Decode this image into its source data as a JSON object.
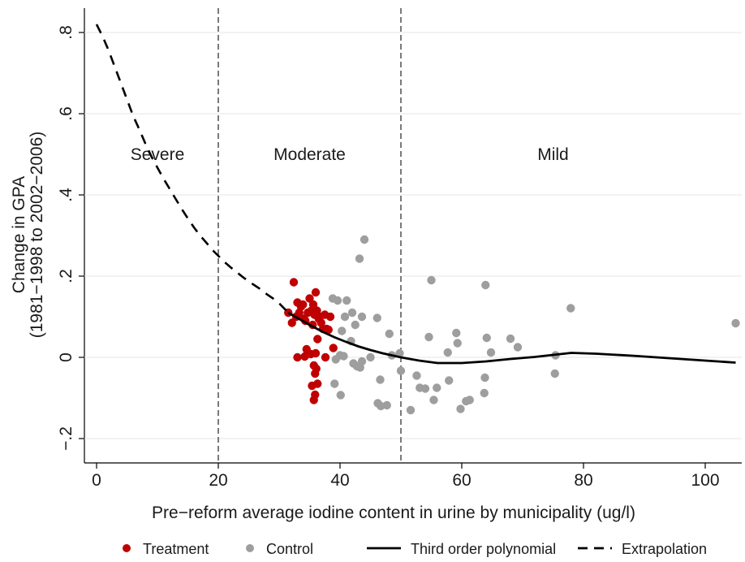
{
  "chart_data": {
    "type": "scatter",
    "xlabel": "Pre−reform average iodine content in urine by municipality (ug/l)",
    "ylabel_lines": [
      "Change in GPA",
      "(1981−1998 to 2002−2006)"
    ],
    "xlim": [
      -2,
      106
    ],
    "ylim": [
      -0.26,
      0.86
    ],
    "x_ticks": [
      0,
      20,
      40,
      60,
      80,
      100
    ],
    "x_tick_labels": [
      "0",
      "20",
      "40",
      "60",
      "80",
      "100"
    ],
    "y_ticks": [
      -0.2,
      0,
      0.2,
      0.4,
      0.6,
      0.8
    ],
    "y_tick_labels": [
      "−.2",
      "0",
      ".2",
      ".4",
      ".6",
      ".8"
    ],
    "grid": true,
    "vlines": [
      20,
      50
    ],
    "regions": [
      {
        "label": "Severe",
        "x": 10,
        "y": 0.5
      },
      {
        "label": "Moderate",
        "x": 35,
        "y": 0.5
      },
      {
        "label": "Mild",
        "x": 75,
        "y": 0.5
      }
    ],
    "legend": {
      "position": "bottom",
      "items": [
        {
          "label": "Treatment",
          "kind": "dot",
          "color": "#c00000"
        },
        {
          "label": "Control",
          "kind": "dot",
          "color": "#9e9e9e"
        },
        {
          "label": "Third order polynomial",
          "kind": "solid",
          "color": "#000000"
        },
        {
          "label": "Extrapolation",
          "kind": "dashed",
          "color": "#000000"
        }
      ]
    },
    "series": [
      {
        "name": "Treatment",
        "color": "#c00000",
        "points": [
          [
            31.5,
            0.11
          ],
          [
            32.4,
            0.185
          ],
          [
            32.1,
            0.085
          ],
          [
            32.8,
            0.1
          ],
          [
            33.0,
            0.135
          ],
          [
            33.3,
            0.11
          ],
          [
            33.6,
            0.125
          ],
          [
            33.9,
            0.13
          ],
          [
            34.1,
            0.095
          ],
          [
            34.3,
            0.09
          ],
          [
            34.7,
            0.11
          ],
          [
            35.0,
            0.145
          ],
          [
            35.3,
            0.115
          ],
          [
            35.6,
            0.13
          ],
          [
            35.8,
            0.105
          ],
          [
            36.0,
            0.16
          ],
          [
            36.2,
            0.115
          ],
          [
            36.5,
            0.095
          ],
          [
            36.7,
            0.1
          ],
          [
            36.9,
            0.085
          ],
          [
            37.2,
            0.07
          ],
          [
            37.5,
            0.105
          ],
          [
            37.8,
            0.07
          ],
          [
            38.1,
            0.068
          ],
          [
            38.4,
            0.1
          ],
          [
            35.5,
            0.08
          ],
          [
            36.3,
            0.045
          ],
          [
            38.9,
            0.023
          ],
          [
            37.6,
            0.0
          ],
          [
            36.0,
            0.01
          ],
          [
            34.5,
            0.02
          ],
          [
            34.2,
            0.002
          ],
          [
            33.0,
            0.0
          ],
          [
            35.2,
            0.008
          ],
          [
            35.7,
            -0.02
          ],
          [
            36.1,
            -0.028
          ],
          [
            35.9,
            -0.04
          ],
          [
            35.4,
            -0.07
          ],
          [
            35.9,
            -0.092
          ],
          [
            35.7,
            -0.105
          ],
          [
            36.3,
            -0.065
          ]
        ]
      },
      {
        "name": "Control",
        "color": "#9e9e9e",
        "points": [
          [
            38.8,
            0.145
          ],
          [
            39.6,
            0.14
          ],
          [
            41.1,
            0.14
          ],
          [
            40.8,
            0.1
          ],
          [
            42.0,
            0.11
          ],
          [
            40.3,
            0.065
          ],
          [
            42.5,
            0.08
          ],
          [
            43.6,
            0.1
          ],
          [
            43.2,
            0.243
          ],
          [
            44.0,
            0.29
          ],
          [
            41.8,
            0.04
          ],
          [
            40.0,
            0.005
          ],
          [
            40.6,
            0.003
          ],
          [
            39.3,
            -0.005
          ],
          [
            42.2,
            -0.015
          ],
          [
            42.8,
            -0.022
          ],
          [
            43.3,
            -0.025
          ],
          [
            43.6,
            -0.01
          ],
          [
            39.1,
            -0.065
          ],
          [
            40.1,
            -0.093
          ],
          [
            45.0,
            0.0
          ],
          [
            46.1,
            0.097
          ],
          [
            46.6,
            -0.055
          ],
          [
            46.2,
            -0.113
          ],
          [
            46.7,
            -0.12
          ],
          [
            47.7,
            -0.118
          ],
          [
            48.1,
            0.058
          ],
          [
            48.5,
            0.005
          ],
          [
            49.8,
            0.01
          ],
          [
            50.0,
            -0.033
          ],
          [
            51.6,
            -0.13
          ],
          [
            52.6,
            -0.045
          ],
          [
            53.1,
            -0.075
          ],
          [
            54.0,
            -0.077
          ],
          [
            54.6,
            0.05
          ],
          [
            55.0,
            0.19
          ],
          [
            55.4,
            -0.105
          ],
          [
            55.9,
            -0.075
          ],
          [
            57.7,
            0.012
          ],
          [
            57.9,
            -0.057
          ],
          [
            59.1,
            0.06
          ],
          [
            59.3,
            0.035
          ],
          [
            59.8,
            -0.127
          ],
          [
            60.7,
            -0.108
          ],
          [
            61.3,
            -0.105
          ],
          [
            63.9,
            0.178
          ],
          [
            64.1,
            0.048
          ],
          [
            63.8,
            -0.05
          ],
          [
            63.7,
            -0.088
          ],
          [
            64.8,
            0.012
          ],
          [
            68.0,
            0.046
          ],
          [
            69.2,
            0.025
          ],
          [
            75.4,
            0.005
          ],
          [
            75.3,
            -0.04
          ],
          [
            77.9,
            0.121
          ],
          [
            105.0,
            0.084
          ]
        ]
      },
      {
        "name": "Third order polynomial",
        "style": "solid",
        "color": "#000000",
        "points": [
          [
            31.5,
            0.11
          ],
          [
            33,
            0.097
          ],
          [
            35,
            0.08
          ],
          [
            37,
            0.064
          ],
          [
            39,
            0.05
          ],
          [
            41,
            0.038
          ],
          [
            43,
            0.027
          ],
          [
            45,
            0.018
          ],
          [
            47,
            0.01
          ],
          [
            50,
            0.0
          ],
          [
            53,
            -0.008
          ],
          [
            56,
            -0.014
          ],
          [
            60,
            -0.014
          ],
          [
            64,
            -0.01
          ],
          [
            68,
            -0.004
          ],
          [
            72,
            0.001
          ],
          [
            75,
            0.006
          ],
          [
            78,
            0.011
          ],
          [
            82,
            0.009
          ],
          [
            88,
            0.004
          ],
          [
            94,
            -0.002
          ],
          [
            100,
            -0.008
          ],
          [
            105,
            -0.013
          ]
        ]
      },
      {
        "name": "Extrapolation",
        "style": "dashed",
        "color": "#000000",
        "points": [
          [
            0,
            0.82
          ],
          [
            1,
            0.79
          ],
          [
            2,
            0.755
          ],
          [
            3,
            0.715
          ],
          [
            4,
            0.675
          ],
          [
            5,
            0.635
          ],
          [
            6,
            0.595
          ],
          [
            7,
            0.562
          ],
          [
            8,
            0.527
          ],
          [
            9,
            0.495
          ],
          [
            10,
            0.467
          ],
          [
            11,
            0.44
          ],
          [
            12,
            0.415
          ],
          [
            13,
            0.39
          ],
          [
            14,
            0.365
          ],
          [
            15,
            0.342
          ],
          [
            16,
            0.32
          ],
          [
            17,
            0.3
          ],
          [
            18,
            0.283
          ],
          [
            19,
            0.265
          ],
          [
            20,
            0.25
          ],
          [
            21,
            0.235
          ],
          [
            22,
            0.222
          ],
          [
            23,
            0.21
          ],
          [
            24,
            0.198
          ],
          [
            25,
            0.187
          ],
          [
            26,
            0.177
          ],
          [
            27,
            0.167
          ],
          [
            28,
            0.155
          ],
          [
            29,
            0.145
          ],
          [
            30,
            0.133
          ],
          [
            31.5,
            0.11
          ]
        ]
      }
    ]
  }
}
